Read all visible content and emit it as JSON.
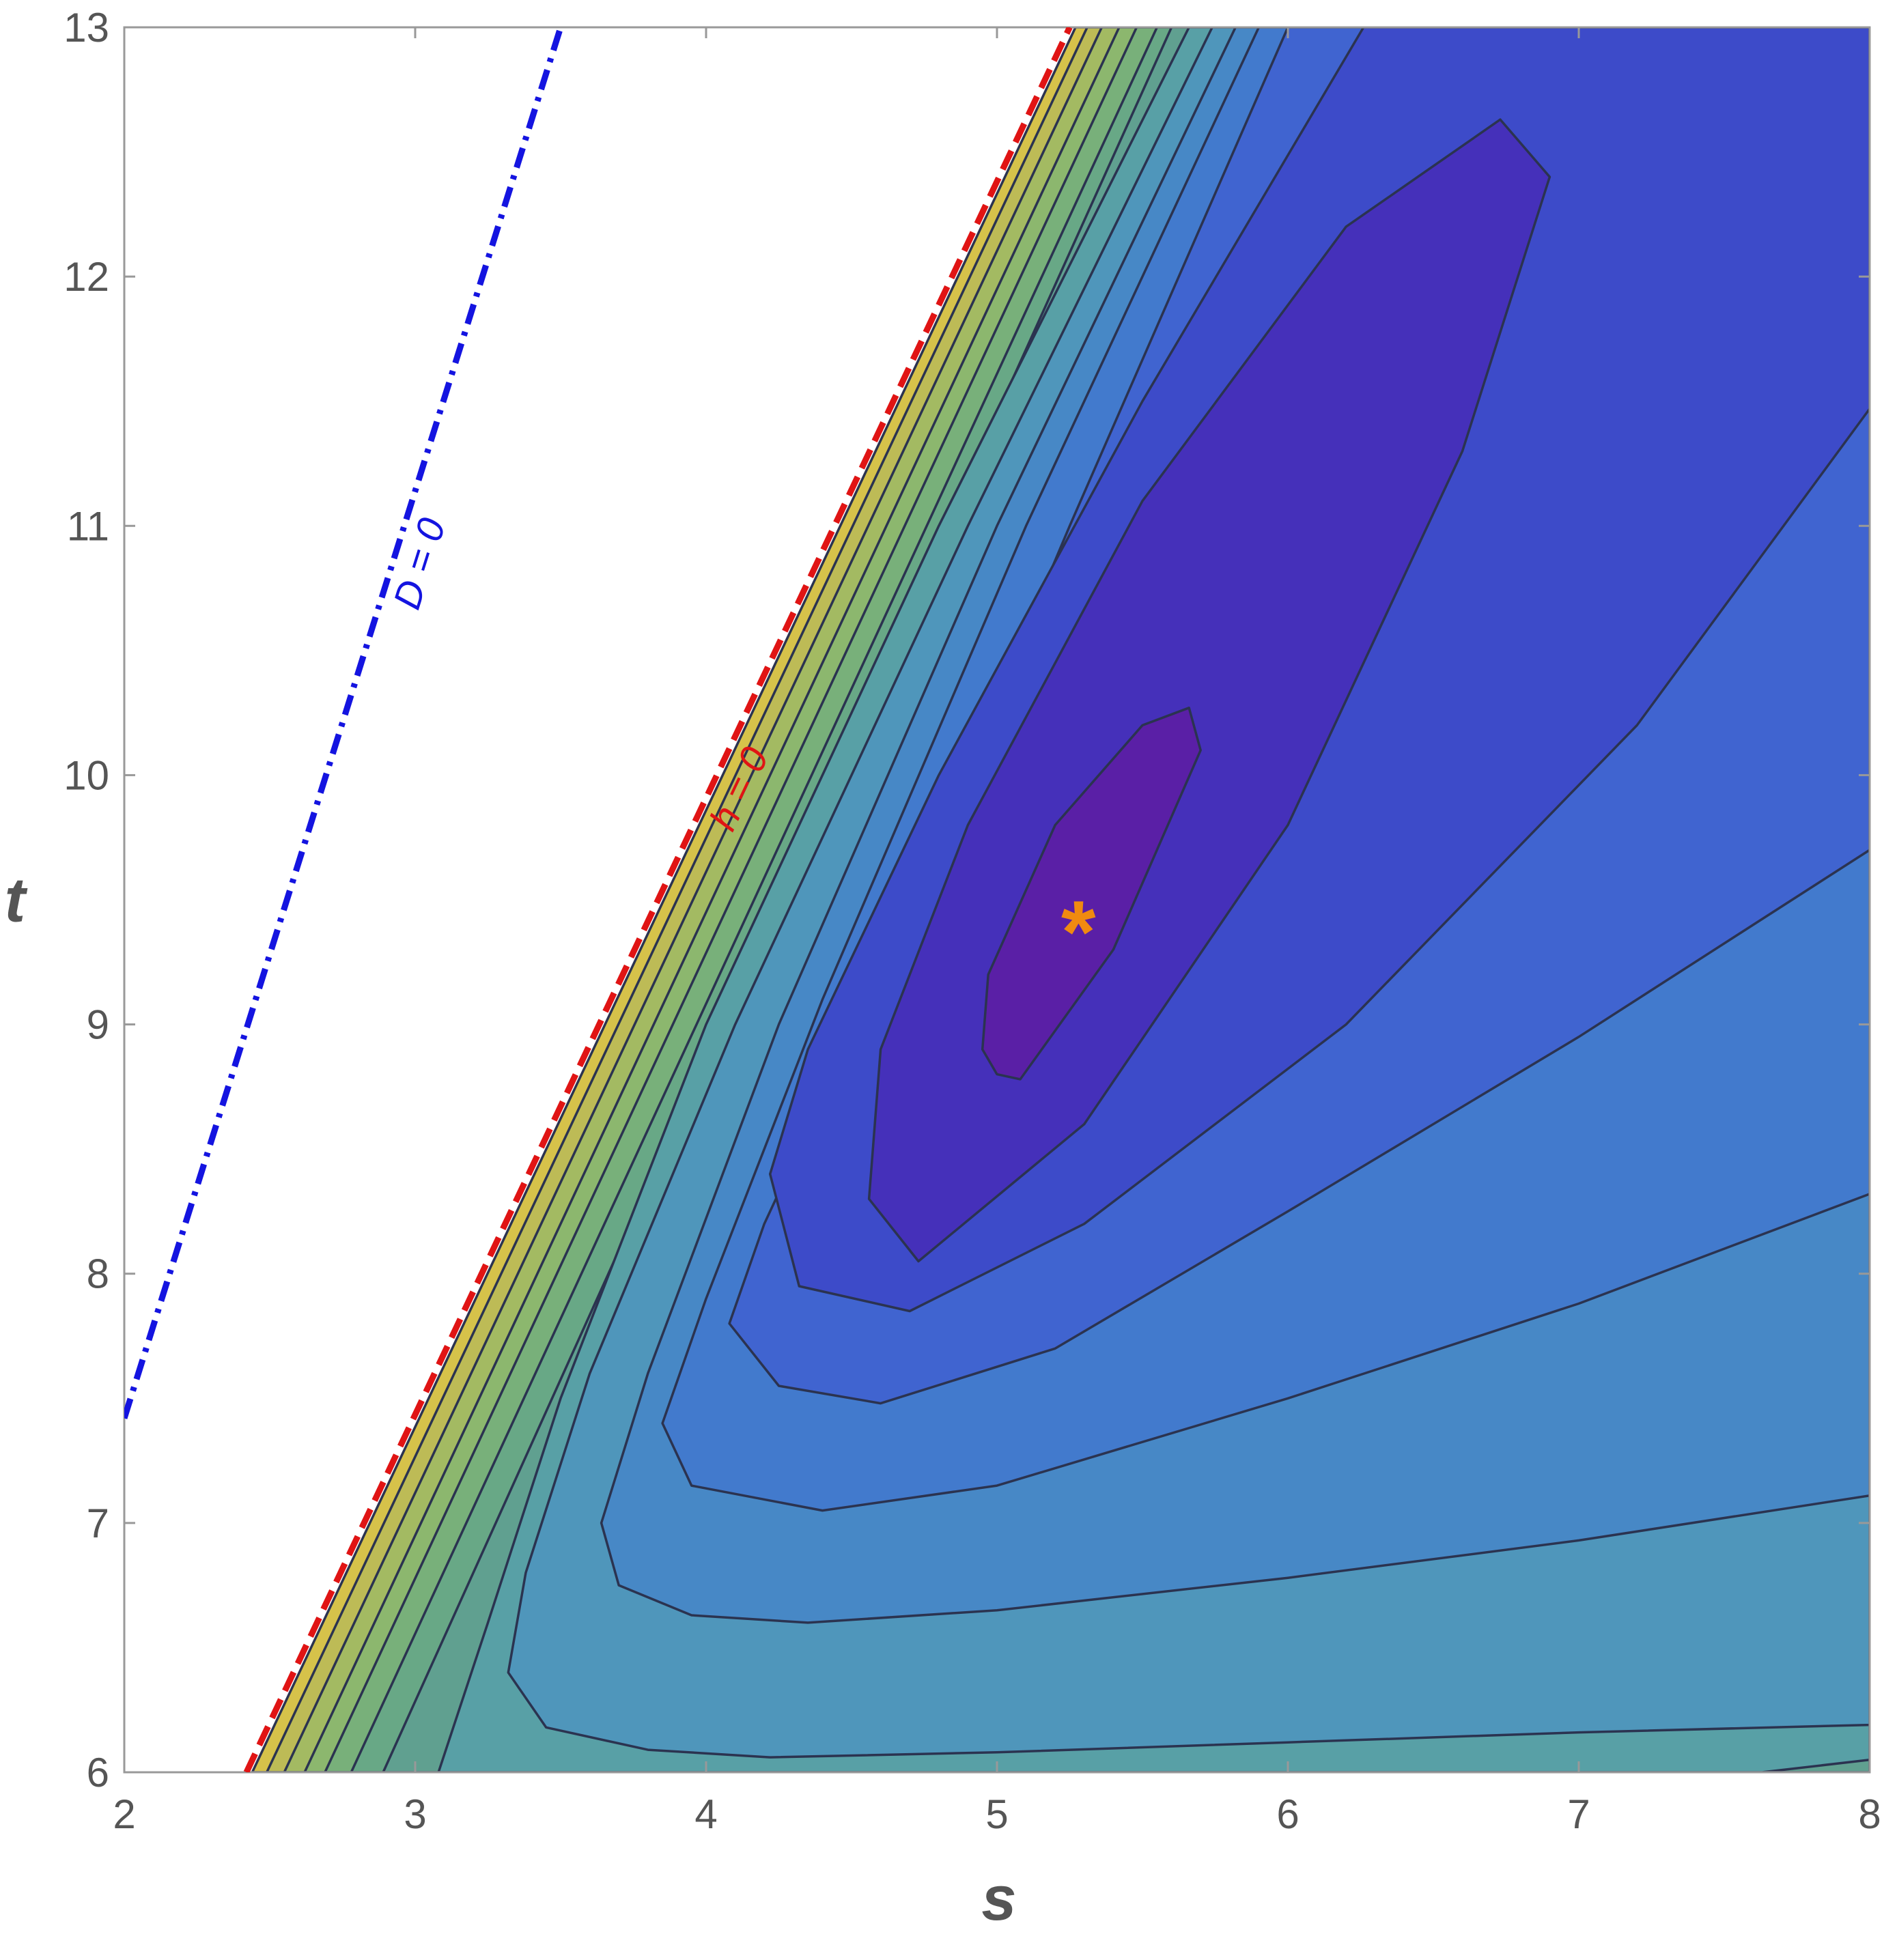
{
  "chart_data": {
    "type": "contour",
    "xlabel": "s",
    "ylabel": "t",
    "xlim": [
      2,
      8
    ],
    "ylim": [
      6,
      13
    ],
    "xticks": [
      2,
      3,
      4,
      5,
      6,
      7,
      8
    ],
    "yticks": [
      6,
      7,
      8,
      9,
      10,
      11,
      12,
      13
    ],
    "contour_line_color": "#2b3350",
    "contours": [
      {
        "color": "#d6c24a",
        "x": [
          2.44,
          5.27,
          8,
          8
        ],
        "y": [
          6,
          13,
          13,
          6
        ]
      },
      {
        "color": "#bdbb56",
        "x": [
          2.49,
          5.31,
          8,
          8
        ],
        "y": [
          6,
          13,
          13,
          6
        ]
      },
      {
        "color": "#a3ba62",
        "x": [
          2.55,
          5.36,
          8,
          8
        ],
        "y": [
          6,
          13,
          13,
          6
        ]
      },
      {
        "color": "#8cb76e",
        "x": [
          2.62,
          5.42,
          8,
          8
        ],
        "y": [
          6,
          13,
          13,
          6
        ]
      },
      {
        "color": "#78b07a",
        "x": [
          2.69,
          5.48,
          8,
          8
        ],
        "y": [
          6,
          13,
          13,
          6
        ]
      },
      {
        "color": "#68a886",
        "x": [
          2.78,
          5.55,
          8,
          8
        ],
        "y": [
          6,
          13,
          13,
          6
        ]
      },
      {
        "color": "#60a090",
        "x": [
          2.89,
          5.6,
          8,
          8
        ],
        "y": [
          6,
          13,
          13,
          6
        ]
      },
      {
        "color": "#58a0a6",
        "x": [
          5.66,
          4.8,
          4.0,
          3.5,
          3.25,
          3.08,
          7.63,
          8,
          8
        ],
        "y": [
          13,
          11,
          9,
          7.5,
          6.6,
          6,
          6,
          6.05,
          13
        ]
      },
      {
        "color": "#4f96bb",
        "x": [
          5.74,
          4.9,
          4.1,
          3.6,
          3.38,
          3.32,
          3.45,
          3.8,
          4.22,
          5,
          6,
          7,
          8,
          8
        ],
        "y": [
          13,
          11,
          9,
          7.6,
          6.8,
          6.4,
          6.18,
          6.09,
          6.06,
          6.08,
          6.12,
          6.16,
          6.19,
          13
        ]
      },
      {
        "color": "#4788c6",
        "x": [
          5.82,
          5.0,
          4.25,
          3.8,
          3.64,
          3.7,
          3.95,
          4.35,
          5,
          6,
          7,
          8,
          8
        ],
        "y": [
          13,
          11,
          9,
          7.6,
          7.0,
          6.75,
          6.63,
          6.6,
          6.65,
          6.78,
          6.93,
          7.11,
          13
        ]
      },
      {
        "color": "#427acd",
        "x": [
          5.9,
          5.1,
          4.4,
          4.0,
          3.85,
          3.95,
          4.4,
          5,
          6,
          7,
          8,
          8
        ],
        "y": [
          13,
          11,
          9.1,
          7.9,
          7.4,
          7.15,
          7.05,
          7.15,
          7.5,
          7.88,
          8.32,
          13
        ]
      },
      {
        "color": "#4064d0",
        "x": [
          6.0,
          5.25,
          4.6,
          4.2,
          4.08,
          4.25,
          4.6,
          5.2,
          6,
          7,
          8,
          8
        ],
        "y": [
          13,
          11,
          9.2,
          8.2,
          7.8,
          7.55,
          7.48,
          7.7,
          8.25,
          8.95,
          9.7,
          13
        ]
      },
      {
        "color": "#3d4bc9",
        "x": [
          6.26,
          5.5,
          4.8,
          4.35,
          4.22,
          4.32,
          4.7,
          5.3,
          6.2,
          7.2,
          8,
          8
        ],
        "y": [
          13,
          11.5,
          10,
          8.9,
          8.4,
          7.95,
          7.85,
          8.2,
          9.0,
          10.2,
          11.47,
          13
        ]
      },
      {
        "color": "#4530ba",
        "x": [
          4.56,
          4.73,
          5.3,
          6,
          6.6,
          6.9,
          6.73,
          6.2,
          5.5,
          4.9,
          4.6
        ],
        "y": [
          8.3,
          8.05,
          8.6,
          9.8,
          11.3,
          12.4,
          12.63,
          12.2,
          11.1,
          9.8,
          8.9
        ]
      },
      {
        "color": "#5a1fa6",
        "x": [
          5.0,
          5.08,
          5.4,
          5.7,
          5.66,
          5.5,
          5.2,
          4.97,
          4.95
        ],
        "y": [
          8.8,
          8.78,
          9.3,
          10.1,
          10.27,
          10.2,
          9.8,
          9.2,
          8.9
        ]
      }
    ],
    "lines": [
      {
        "label": "D = 0",
        "color": "#1414e0",
        "style": "dashdot",
        "x": [
          2,
          3.5
        ],
        "y": [
          7.42,
          13
        ]
      },
      {
        "label": "h = 0",
        "color": "#e01414",
        "style": "dashed",
        "x": [
          2.42,
          5.25
        ],
        "y": [
          6,
          13
        ]
      }
    ],
    "marker": {
      "text": "*",
      "color": "#f08a10",
      "x": 5.28,
      "y": 9.38
    }
  }
}
